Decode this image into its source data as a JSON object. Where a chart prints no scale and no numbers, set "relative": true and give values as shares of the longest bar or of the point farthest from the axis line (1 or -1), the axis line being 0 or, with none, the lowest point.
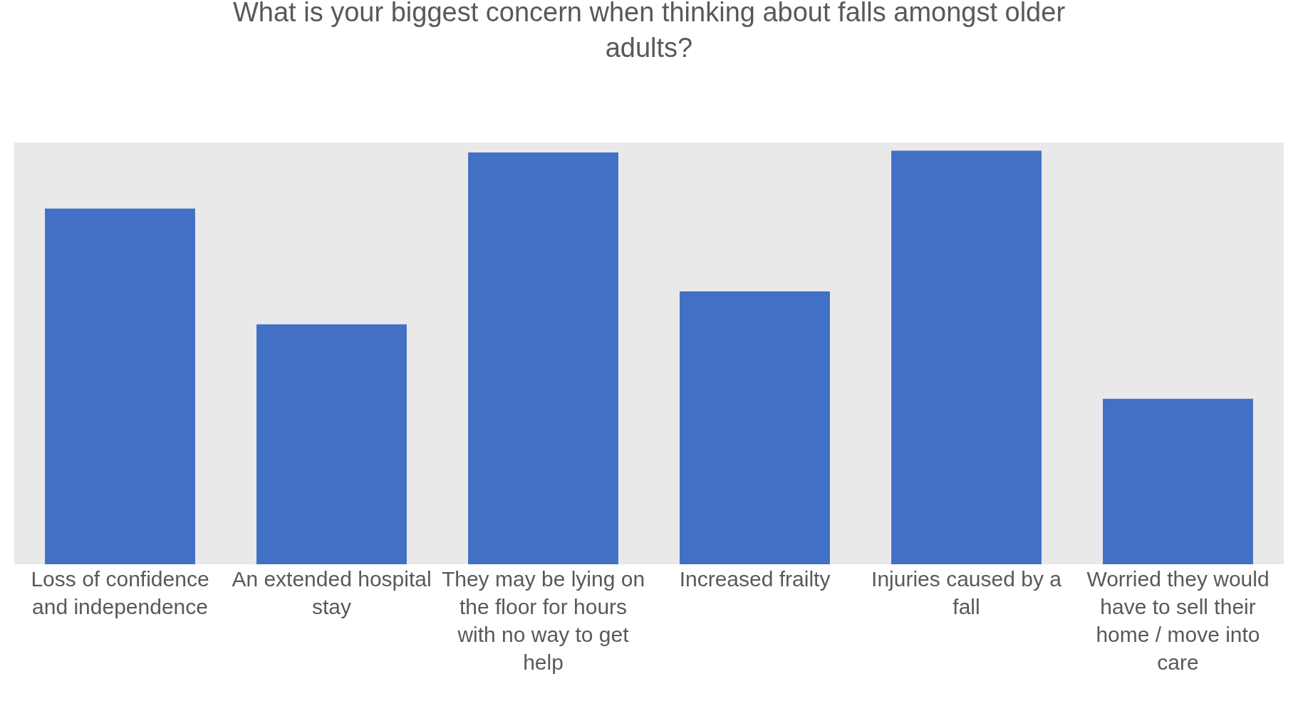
{
  "chart_data": {
    "type": "bar",
    "title": "What is your biggest concern when thinking about falls amongst older adults?",
    "categories": [
      "Loss of confidence and independence",
      "An extended hospital stay",
      "They may be lying on the floor for hours with no way to get help",
      "Increased frailty",
      "Injuries caused by a fall",
      "Worried they would have to sell their home / move into care"
    ],
    "values": [
      0.86,
      0.58,
      0.996,
      0.66,
      1,
      0.4
    ],
    "color": "#4170c4",
    "relative": true,
    "grid": false,
    "legend": false
  }
}
